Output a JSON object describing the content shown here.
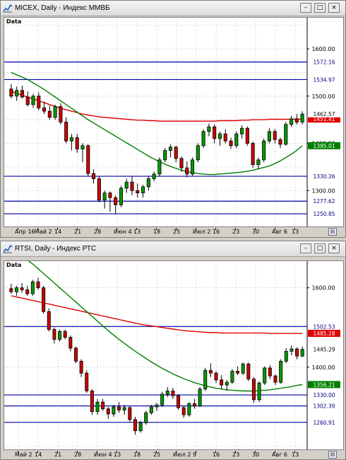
{
  "windows": [
    {
      "id": "micex",
      "title": "MICEX, Daily - Индекс ММВБ",
      "corner_label": "Data",
      "buttons": {
        "minimize": "–",
        "maximize": "□",
        "close": "×"
      },
      "price_axis_labels": [
        "1600.00",
        "1500.00",
        "1400.00",
        "1300.00"
      ],
      "level_labels": [
        "1572.16",
        "1534.97",
        "1330.26",
        "1277.62",
        "1250.85"
      ],
      "current_price_label": "1462.57",
      "ma_red_label": "1451.41",
      "ma_green_label": "1395.01",
      "date_labels": [
        "Апр 16",
        "Май 2",
        "14",
        "21",
        "28",
        "Июн 4",
        "13",
        "18",
        "25",
        "Июл 2",
        "16",
        "23",
        "30",
        "Авг 6",
        "13"
      ]
    },
    {
      "id": "rtsi",
      "title": "RTSI, Daily - Индекс РТС",
      "corner_label": "Data",
      "buttons": {
        "minimize": "–",
        "maximize": "□",
        "close": "×"
      },
      "price_axis_labels": [
        "1600.00",
        "1400.00"
      ],
      "level_labels": [
        "1502.53",
        "1330.00",
        "1302.39",
        "1260.91"
      ],
      "current_price_label": "1445.29",
      "ma_red_label": "1485.28",
      "ma_green_label": "1356.21",
      "date_labels": [
        "Май 2",
        "14",
        "21",
        "28",
        "Июн 4",
        "13",
        "18",
        "25",
        "Июл 2",
        "9",
        "16",
        "23",
        "30",
        "Авг 6",
        "13"
      ]
    }
  ],
  "chart_data": [
    {
      "type": "candlestick",
      "title": "MICEX, Daily - Индекс ММВБ",
      "ylim": [
        1230,
        1660
      ],
      "horizontal_levels": [
        1572.16,
        1534.97,
        1330.26,
        1277.62,
        1250.85
      ],
      "colors": {
        "up": "#009900",
        "down": "#cc0000",
        "level": "#0000aa",
        "ma_long": "#e00000",
        "ma_short": "#008000"
      },
      "candles": [
        {
          "o": 1515,
          "h": 1525,
          "l": 1495,
          "c": 1500
        },
        {
          "o": 1500,
          "h": 1520,
          "l": 1490,
          "c": 1512
        },
        {
          "o": 1512,
          "h": 1522,
          "l": 1495,
          "c": 1498
        },
        {
          "o": 1498,
          "h": 1510,
          "l": 1478,
          "c": 1482
        },
        {
          "o": 1482,
          "h": 1505,
          "l": 1475,
          "c": 1500
        },
        {
          "o": 1500,
          "h": 1508,
          "l": 1470,
          "c": 1475
        },
        {
          "o": 1475,
          "h": 1488,
          "l": 1462,
          "c": 1468
        },
        {
          "o": 1468,
          "h": 1480,
          "l": 1450,
          "c": 1455
        },
        {
          "o": 1455,
          "h": 1482,
          "l": 1450,
          "c": 1478
        },
        {
          "o": 1478,
          "h": 1485,
          "l": 1440,
          "c": 1445
        },
        {
          "o": 1445,
          "h": 1455,
          "l": 1400,
          "c": 1405
        },
        {
          "o": 1405,
          "h": 1420,
          "l": 1385,
          "c": 1412
        },
        {
          "o": 1412,
          "h": 1420,
          "l": 1380,
          "c": 1388
        },
        {
          "o": 1388,
          "h": 1400,
          "l": 1360,
          "c": 1395
        },
        {
          "o": 1395,
          "h": 1398,
          "l": 1330,
          "c": 1336
        },
        {
          "o": 1336,
          "h": 1345,
          "l": 1315,
          "c": 1325
        },
        {
          "o": 1325,
          "h": 1330,
          "l": 1275,
          "c": 1280
        },
        {
          "o": 1280,
          "h": 1300,
          "l": 1262,
          "c": 1295
        },
        {
          "o": 1295,
          "h": 1298,
          "l": 1255,
          "c": 1285
        },
        {
          "o": 1285,
          "h": 1290,
          "l": 1250,
          "c": 1270
        },
        {
          "o": 1270,
          "h": 1310,
          "l": 1265,
          "c": 1305
        },
        {
          "o": 1305,
          "h": 1325,
          "l": 1295,
          "c": 1318
        },
        {
          "o": 1318,
          "h": 1330,
          "l": 1290,
          "c": 1300
        },
        {
          "o": 1300,
          "h": 1315,
          "l": 1285,
          "c": 1295
        },
        {
          "o": 1295,
          "h": 1312,
          "l": 1285,
          "c": 1308
        },
        {
          "o": 1308,
          "h": 1330,
          "l": 1300,
          "c": 1325
        },
        {
          "o": 1325,
          "h": 1340,
          "l": 1320,
          "c": 1335
        },
        {
          "o": 1335,
          "h": 1370,
          "l": 1330,
          "c": 1365
        },
        {
          "o": 1365,
          "h": 1390,
          "l": 1360,
          "c": 1385
        },
        {
          "o": 1385,
          "h": 1398,
          "l": 1370,
          "c": 1392
        },
        {
          "o": 1392,
          "h": 1395,
          "l": 1360,
          "c": 1368
        },
        {
          "o": 1368,
          "h": 1372,
          "l": 1340,
          "c": 1348
        },
        {
          "o": 1348,
          "h": 1362,
          "l": 1328,
          "c": 1335
        },
        {
          "o": 1335,
          "h": 1370,
          "l": 1330,
          "c": 1365
        },
        {
          "o": 1365,
          "h": 1400,
          "l": 1360,
          "c": 1395
        },
        {
          "o": 1395,
          "h": 1430,
          "l": 1390,
          "c": 1425
        },
        {
          "o": 1425,
          "h": 1442,
          "l": 1415,
          "c": 1435
        },
        {
          "o": 1435,
          "h": 1440,
          "l": 1400,
          "c": 1410
        },
        {
          "o": 1410,
          "h": 1425,
          "l": 1395,
          "c": 1420
        },
        {
          "o": 1420,
          "h": 1430,
          "l": 1400,
          "c": 1405
        },
        {
          "o": 1405,
          "h": 1412,
          "l": 1388,
          "c": 1395
        },
        {
          "o": 1395,
          "h": 1425,
          "l": 1390,
          "c": 1420
        },
        {
          "o": 1420,
          "h": 1438,
          "l": 1410,
          "c": 1432
        },
        {
          "o": 1432,
          "h": 1436,
          "l": 1395,
          "c": 1400
        },
        {
          "o": 1400,
          "h": 1404,
          "l": 1348,
          "c": 1355
        },
        {
          "o": 1355,
          "h": 1370,
          "l": 1345,
          "c": 1365
        },
        {
          "o": 1365,
          "h": 1410,
          "l": 1360,
          "c": 1405
        },
        {
          "o": 1405,
          "h": 1432,
          "l": 1400,
          "c": 1425
        },
        {
          "o": 1425,
          "h": 1430,
          "l": 1400,
          "c": 1408
        },
        {
          "o": 1408,
          "h": 1412,
          "l": 1390,
          "c": 1398
        },
        {
          "o": 1398,
          "h": 1445,
          "l": 1395,
          "c": 1440
        },
        {
          "o": 1440,
          "h": 1458,
          "l": 1435,
          "c": 1452
        },
        {
          "o": 1452,
          "h": 1462,
          "l": 1440,
          "c": 1445
        },
        {
          "o": 1445,
          "h": 1468,
          "l": 1440,
          "c": 1462
        }
      ],
      "ma_long": [
        1510,
        1506,
        1502,
        1498,
        1494,
        1490,
        1486,
        1482,
        1478,
        1474,
        1471,
        1468,
        1465,
        1462,
        1460,
        1458,
        1456,
        1455,
        1454,
        1453,
        1452,
        1451,
        1450,
        1449,
        1449,
        1448,
        1448,
        1447,
        1447,
        1447,
        1447,
        1447,
        1447,
        1447,
        1447,
        1447,
        1447,
        1447,
        1448,
        1448,
        1448,
        1448,
        1449,
        1449,
        1450,
        1450,
        1450,
        1451,
        1451,
        1451,
        1451,
        1451,
        1451,
        1451
      ],
      "ma_short": [
        1550,
        1545,
        1540,
        1535,
        1528,
        1521,
        1514,
        1506,
        1498,
        1490,
        1482,
        1474,
        1466,
        1458,
        1450,
        1443,
        1436,
        1429,
        1422,
        1415,
        1408,
        1401,
        1394,
        1387,
        1380,
        1373,
        1367,
        1361,
        1356,
        1351,
        1347,
        1343,
        1340,
        1338,
        1336,
        1335,
        1334,
        1334,
        1335,
        1336,
        1337,
        1338,
        1339,
        1341,
        1343,
        1346,
        1349,
        1352,
        1357,
        1363,
        1370,
        1377,
        1385,
        1395
      ]
    },
    {
      "type": "candlestick",
      "title": "RTSI, Daily - Индекс РТС",
      "ylim": [
        1200,
        1660
      ],
      "horizontal_levels": [
        1502.53,
        1330.0,
        1302.39,
        1260.91
      ],
      "colors": {
        "up": "#009900",
        "down": "#cc0000",
        "level": "#0000aa",
        "ma_long": "#e00000",
        "ma_short": "#008000"
      },
      "candles": [
        {
          "o": 1598,
          "h": 1610,
          "l": 1585,
          "c": 1590
        },
        {
          "o": 1590,
          "h": 1605,
          "l": 1580,
          "c": 1600
        },
        {
          "o": 1600,
          "h": 1612,
          "l": 1588,
          "c": 1595
        },
        {
          "o": 1595,
          "h": 1605,
          "l": 1580,
          "c": 1585
        },
        {
          "o": 1585,
          "h": 1620,
          "l": 1580,
          "c": 1615
        },
        {
          "o": 1615,
          "h": 1625,
          "l": 1595,
          "c": 1600
        },
        {
          "o": 1600,
          "h": 1605,
          "l": 1535,
          "c": 1540
        },
        {
          "o": 1540,
          "h": 1548,
          "l": 1490,
          "c": 1495
        },
        {
          "o": 1495,
          "h": 1500,
          "l": 1460,
          "c": 1470
        },
        {
          "o": 1470,
          "h": 1495,
          "l": 1465,
          "c": 1490
        },
        {
          "o": 1490,
          "h": 1495,
          "l": 1470,
          "c": 1475
        },
        {
          "o": 1475,
          "h": 1480,
          "l": 1440,
          "c": 1448
        },
        {
          "o": 1448,
          "h": 1452,
          "l": 1410,
          "c": 1415
        },
        {
          "o": 1415,
          "h": 1420,
          "l": 1375,
          "c": 1385
        },
        {
          "o": 1385,
          "h": 1392,
          "l": 1335,
          "c": 1340
        },
        {
          "o": 1340,
          "h": 1345,
          "l": 1280,
          "c": 1288
        },
        {
          "o": 1288,
          "h": 1320,
          "l": 1280,
          "c": 1312
        },
        {
          "o": 1312,
          "h": 1320,
          "l": 1290,
          "c": 1295
        },
        {
          "o": 1295,
          "h": 1300,
          "l": 1270,
          "c": 1282
        },
        {
          "o": 1282,
          "h": 1305,
          "l": 1275,
          "c": 1300
        },
        {
          "o": 1300,
          "h": 1312,
          "l": 1285,
          "c": 1292
        },
        {
          "o": 1292,
          "h": 1305,
          "l": 1280,
          "c": 1298
        },
        {
          "o": 1298,
          "h": 1302,
          "l": 1262,
          "c": 1268
        },
        {
          "o": 1268,
          "h": 1275,
          "l": 1230,
          "c": 1240
        },
        {
          "o": 1240,
          "h": 1265,
          "l": 1235,
          "c": 1260
        },
        {
          "o": 1260,
          "h": 1290,
          "l": 1255,
          "c": 1285
        },
        {
          "o": 1285,
          "h": 1305,
          "l": 1280,
          "c": 1300
        },
        {
          "o": 1300,
          "h": 1310,
          "l": 1290,
          "c": 1305
        },
        {
          "o": 1305,
          "h": 1338,
          "l": 1300,
          "c": 1332
        },
        {
          "o": 1332,
          "h": 1350,
          "l": 1325,
          "c": 1340
        },
        {
          "o": 1340,
          "h": 1348,
          "l": 1320,
          "c": 1328
        },
        {
          "o": 1328,
          "h": 1332,
          "l": 1292,
          "c": 1298
        },
        {
          "o": 1298,
          "h": 1302,
          "l": 1272,
          "c": 1280
        },
        {
          "o": 1280,
          "h": 1312,
          "l": 1275,
          "c": 1308
        },
        {
          "o": 1308,
          "h": 1320,
          "l": 1295,
          "c": 1302
        },
        {
          "o": 1302,
          "h": 1350,
          "l": 1300,
          "c": 1345
        },
        {
          "o": 1345,
          "h": 1398,
          "l": 1340,
          "c": 1392
        },
        {
          "o": 1392,
          "h": 1410,
          "l": 1375,
          "c": 1385
        },
        {
          "o": 1385,
          "h": 1390,
          "l": 1360,
          "c": 1368
        },
        {
          "o": 1368,
          "h": 1380,
          "l": 1345,
          "c": 1355
        },
        {
          "o": 1355,
          "h": 1368,
          "l": 1340,
          "c": 1362
        },
        {
          "o": 1362,
          "h": 1395,
          "l": 1358,
          "c": 1390
        },
        {
          "o": 1390,
          "h": 1402,
          "l": 1380,
          "c": 1385
        },
        {
          "o": 1385,
          "h": 1412,
          "l": 1380,
          "c": 1408
        },
        {
          "o": 1408,
          "h": 1412,
          "l": 1365,
          "c": 1370
        },
        {
          "o": 1370,
          "h": 1375,
          "l": 1310,
          "c": 1318
        },
        {
          "o": 1318,
          "h": 1365,
          "l": 1312,
          "c": 1360
        },
        {
          "o": 1360,
          "h": 1402,
          "l": 1355,
          "c": 1398
        },
        {
          "o": 1398,
          "h": 1405,
          "l": 1370,
          "c": 1378
        },
        {
          "o": 1378,
          "h": 1382,
          "l": 1355,
          "c": 1362
        },
        {
          "o": 1362,
          "h": 1420,
          "l": 1358,
          "c": 1415
        },
        {
          "o": 1415,
          "h": 1448,
          "l": 1410,
          "c": 1440
        },
        {
          "o": 1440,
          "h": 1455,
          "l": 1430,
          "c": 1446
        },
        {
          "o": 1446,
          "h": 1450,
          "l": 1420,
          "c": 1428
        },
        {
          "o": 1428,
          "h": 1452,
          "l": 1425,
          "c": 1445
        }
      ],
      "ma_long": [
        1580,
        1577,
        1574,
        1571,
        1568,
        1565,
        1562,
        1559,
        1556,
        1553,
        1550,
        1547,
        1544,
        1541,
        1538,
        1535,
        1532,
        1529,
        1526,
        1523,
        1520,
        1517,
        1514,
        1511,
        1508,
        1506,
        1504,
        1502,
        1500,
        1498,
        1496,
        1494,
        1492,
        1491,
        1490,
        1489,
        1488,
        1487,
        1487,
        1486,
        1486,
        1486,
        1486,
        1486,
        1486,
        1486,
        1486,
        1486,
        1485,
        1485,
        1485,
        1485,
        1485,
        1485,
        1485
      ],
      "ma_short": [
        1700,
        1690,
        1680,
        1670,
        1660,
        1648,
        1636,
        1624,
        1612,
        1600,
        1588,
        1576,
        1564,
        1552,
        1540,
        1528,
        1516,
        1504,
        1492,
        1481,
        1470,
        1460,
        1450,
        1440,
        1431,
        1422,
        1413,
        1405,
        1397,
        1390,
        1383,
        1377,
        1371,
        1366,
        1361,
        1357,
        1353,
        1350,
        1347,
        1345,
        1343,
        1342,
        1341,
        1340,
        1340,
        1340,
        1341,
        1342,
        1343,
        1345,
        1347,
        1349,
        1351,
        1354,
        1356
      ]
    }
  ]
}
